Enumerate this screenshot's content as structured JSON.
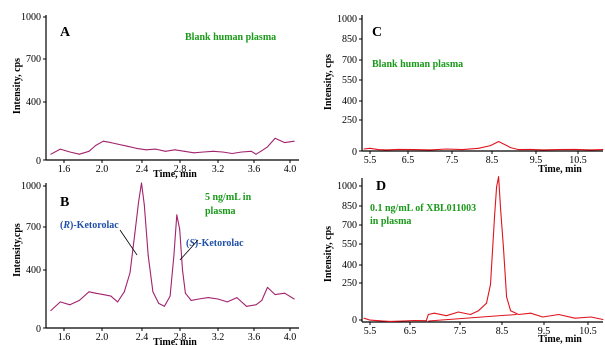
{
  "chart_data": [
    {
      "type": "line",
      "panel": "A",
      "annotation_lines": [
        "Blank human plasma"
      ],
      "xlabel": "Time, min",
      "ylabel": "Intensity, cps",
      "xlim": [
        1.4,
        4.05
      ],
      "ylim": [
        0,
        1000
      ],
      "x_ticks": [
        "1.6",
        "2.0",
        "2.4",
        "2.8",
        "3.2",
        "3.6",
        "4.0"
      ],
      "y_ticks": [
        "0",
        "400",
        "700",
        "1000"
      ],
      "colors": {
        "line": "#a3226e",
        "text": "#1a9a1a"
      },
      "series": [
        {
          "x": [
            1.45,
            1.55,
            1.65,
            1.75,
            1.85,
            1.92,
            2.0,
            2.08,
            2.15,
            2.25,
            2.35,
            2.45,
            2.55,
            2.65,
            2.75,
            2.85,
            2.95,
            3.05,
            3.15,
            3.25,
            3.35,
            3.45,
            3.55,
            3.6,
            3.65,
            3.72,
            3.8,
            3.9,
            4.0
          ],
          "y": [
            40,
            75,
            55,
            40,
            60,
            100,
            130,
            120,
            110,
            95,
            80,
            70,
            75,
            60,
            70,
            60,
            50,
            55,
            60,
            55,
            45,
            55,
            60,
            40,
            60,
            90,
            150,
            120,
            130
          ]
        }
      ]
    },
    {
      "type": "line",
      "panel": "B",
      "annotation_lines": [
        "5 ng/mL in",
        "plasma"
      ],
      "peak_labels": [
        {
          "prefix": "(",
          "italic": "R",
          "suffix": ")-Ketorolac"
        },
        {
          "prefix": "(",
          "italic": "S",
          "suffix": ")-Ketorolac"
        }
      ],
      "xlabel": "Time, min",
      "ylabel": "Intensity,cps",
      "xlim": [
        1.4,
        4.05
      ],
      "ylim": [
        0,
        1000
      ],
      "x_ticks": [
        "1.6",
        "2.0",
        "2.4",
        "2.8",
        "3.2",
        "3.6",
        "4.0"
      ],
      "y_ticks": [
        "0",
        "400",
        "700",
        "1000"
      ],
      "colors": {
        "line": "#a3226e",
        "text": "#1a9a1a",
        "peak": "#1f4fa8"
      },
      "series": [
        {
          "x": [
            1.45,
            1.55,
            1.65,
            1.75,
            1.85,
            1.92,
            2.0,
            2.08,
            2.15,
            2.22,
            2.28,
            2.33,
            2.37,
            2.4,
            2.43,
            2.47,
            2.52,
            2.58,
            2.64,
            2.7,
            2.74,
            2.77,
            2.8,
            2.83,
            2.86,
            2.92,
            3.0,
            3.1,
            3.2,
            3.3,
            3.4,
            3.5,
            3.6,
            3.66,
            3.72,
            3.8,
            3.9,
            4.0
          ],
          "y": [
            120,
            180,
            160,
            190,
            250,
            240,
            230,
            220,
            180,
            250,
            380,
            650,
            870,
            1000,
            850,
            500,
            250,
            170,
            150,
            220,
            500,
            780,
            680,
            400,
            240,
            190,
            200,
            210,
            200,
            180,
            210,
            150,
            160,
            190,
            280,
            230,
            240,
            200
          ]
        }
      ]
    },
    {
      "type": "line",
      "panel": "C",
      "annotation_lines": [
        "Blank human plasma"
      ],
      "xlabel": "Time, min",
      "ylabel": "Intensity, cps",
      "xlim": [
        5.1,
        11.1
      ],
      "ylim": [
        0,
        1000
      ],
      "x_ticks": [
        "5.5",
        "6.5",
        "7.5",
        "8.5",
        "9.5",
        "10.5"
      ],
      "y_ticks": [
        "0",
        "250",
        "400",
        "550",
        "700",
        "850",
        "1000"
      ],
      "colors": {
        "line": "#e0141e",
        "text": "#1a9a1a"
      },
      "series": [
        {
          "x": [
            5.15,
            5.3,
            5.5,
            5.7,
            6.0,
            6.4,
            6.8,
            7.2,
            7.6,
            8.0,
            8.3,
            8.5,
            8.6,
            8.8,
            9.0,
            9.3,
            9.6,
            10.0,
            10.4,
            10.8,
            11.1
          ],
          "y": [
            15,
            20,
            10,
            8,
            12,
            10,
            8,
            15,
            10,
            20,
            40,
            70,
            55,
            25,
            10,
            12,
            8,
            10,
            12,
            8,
            10
          ]
        }
      ]
    },
    {
      "type": "line",
      "panel": "D",
      "annotation_lines": [
        "0.1 ng/mL of XBL011003",
        "in plasma"
      ],
      "xlabel": "Time, min",
      "ylabel": "Intensity, cps",
      "xlim": [
        5.1,
        11.1
      ],
      "ylim": [
        0,
        1150
      ],
      "x_ticks": [
        "5.5",
        "6.5",
        "7.5",
        "8.5",
        "9.5",
        "10.5"
      ],
      "y_ticks": [
        "0",
        "250",
        "400",
        "550",
        "700",
        "850",
        "1000"
      ],
      "colors": {
        "line": "#e0141e",
        "text": "#1a9a1a"
      },
      "series": [
        {
          "x": [
            5.15,
            5.3,
            5.5,
            5.8,
            6.1,
            6.4,
            6.7,
            6.75,
            6.9,
            7.2,
            7.5,
            7.8,
            8.0,
            8.2,
            8.3,
            8.4,
            8.45,
            8.5,
            8.55,
            8.62,
            8.7,
            8.8,
            9.0,
            9.3,
            9.6,
            10.0,
            10.4,
            10.8,
            11.1
          ],
          "y": [
            30,
            15,
            10,
            5,
            8,
            12,
            10,
            60,
            70,
            50,
            80,
            60,
            90,
            150,
            300,
            850,
            1080,
            1160,
            900,
            600,
            200,
            90,
            60,
            70,
            40,
            60,
            30,
            40,
            20
          ]
        }
      ],
      "baseline": {
        "x": [
          6.75,
          8.95
        ],
        "y": [
          8,
          60
        ]
      }
    }
  ]
}
